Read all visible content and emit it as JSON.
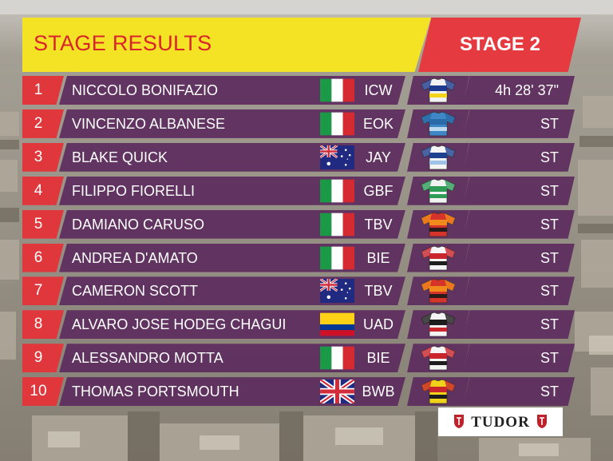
{
  "header": {
    "title": "STAGE RESULTS",
    "stage": "STAGE 2"
  },
  "colors": {
    "title_bg": "#f4e324",
    "title_text": "#d8242a",
    "stage_bg": "#e43a40",
    "position_bg": "#e0373d",
    "row_bg": "#5c2c5e"
  },
  "results": [
    {
      "position": "1",
      "name": "NICCOLO BONIFAZIO",
      "flag": "italy",
      "team": "ICW",
      "jersey": "jersey-intermarche",
      "time": "4h 28' 37\""
    },
    {
      "position": "2",
      "name": "VINCENZO ALBANESE",
      "flag": "italy",
      "team": "EOK",
      "jersey": "jersey-eolo",
      "time": "ST"
    },
    {
      "position": "3",
      "name": "BLAKE QUICK",
      "flag": "australia",
      "team": "JAY",
      "jersey": "jersey-jayco",
      "time": "ST"
    },
    {
      "position": "4",
      "name": "FILIPPO FIORELLI",
      "flag": "italy",
      "team": "GBF",
      "jersey": "jersey-bardiani",
      "time": "ST"
    },
    {
      "position": "5",
      "name": "DAMIANO CARUSO",
      "flag": "italy",
      "team": "TBV",
      "jersey": "jersey-bahrain",
      "time": "ST"
    },
    {
      "position": "6",
      "name": "ANDREA D'AMATO",
      "flag": "italy",
      "team": "BIE",
      "jersey": "jersey-biesse",
      "time": "ST"
    },
    {
      "position": "7",
      "name": "CAMERON SCOTT",
      "flag": "australia",
      "team": "TBV",
      "jersey": "jersey-bahrain",
      "time": "ST"
    },
    {
      "position": "8",
      "name": "ALVARO JOSE HODEG CHAGUI",
      "flag": "colombia",
      "team": "UAD",
      "jersey": "jersey-uae",
      "time": "ST"
    },
    {
      "position": "9",
      "name": "ALESSANDRO MOTTA",
      "flag": "italy",
      "team": "BIE",
      "jersey": "jersey-biesse",
      "time": "ST"
    },
    {
      "position": "10",
      "name": "THOMAS PORTSMOUTH",
      "flag": "uk",
      "team": "BWB",
      "jersey": "jersey-bingoal",
      "time": "ST"
    }
  ],
  "sponsor": {
    "name": "TUDOR"
  }
}
